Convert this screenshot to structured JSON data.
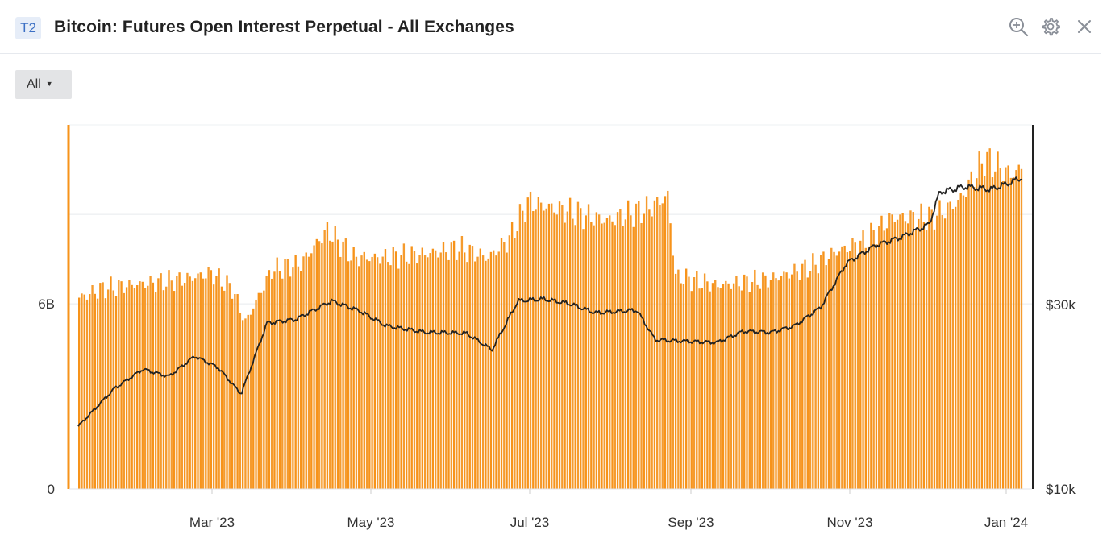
{
  "header": {
    "badge": "T2",
    "title": "Bitcoin: Futures Open Interest Perpetual - All Exchanges",
    "icons": [
      "zoom-in-icon",
      "gear-icon",
      "close-icon"
    ]
  },
  "filter": {
    "label": "All"
  },
  "chart_data": {
    "type": "bar",
    "title": "Bitcoin: Futures Open Interest Perpetual - All Exchanges",
    "x_ticks": [
      "Mar '23",
      "May '23",
      "Jul '23",
      "Sep '23",
      "Nov '23",
      "Jan '24"
    ],
    "x_range": [
      "2023-01-06",
      "2024-01-06"
    ],
    "left_axis": {
      "ticks": [
        "0",
        "6B"
      ],
      "tick_values": [
        0,
        6000000000
      ],
      "ylim": [
        0,
        11800000000
      ]
    },
    "right_axis": {
      "ticks": [
        "$10k",
        "$30k"
      ],
      "tick_values": [
        10000,
        30000
      ],
      "ylim": [
        10000,
        49500
      ]
    },
    "colors": {
      "bars": "#f7931a",
      "price_line": "#222222"
    },
    "grid": true,
    "series": [
      {
        "type": "bar",
        "axis": "left",
        "x": [
          "2023-01-06",
          "2023-01-15",
          "2023-01-25",
          "2023-02-05",
          "2023-02-15",
          "2023-02-25",
          "2023-03-05",
          "2023-03-10",
          "2023-03-20",
          "2023-03-31",
          "2023-04-10",
          "2023-04-20",
          "2023-05-01",
          "2023-05-15",
          "2023-05-30",
          "2023-06-10",
          "2023-06-18",
          "2023-06-25",
          "2023-07-10",
          "2023-07-25",
          "2023-08-10",
          "2023-08-17",
          "2023-08-20",
          "2023-09-05",
          "2023-09-25",
          "2023-10-10",
          "2023-10-20",
          "2023-10-30",
          "2023-11-10",
          "2023-11-25",
          "2023-12-05",
          "2023-12-15",
          "2023-12-25",
          "2024-01-03",
          "2024-01-06"
        ],
        "values": [
          6200000000,
          6500000000,
          6600000000,
          6700000000,
          6800000000,
          7000000000,
          6500000000,
          5400000000,
          7100000000,
          7300000000,
          8400000000,
          7500000000,
          7500000000,
          7600000000,
          7800000000,
          7500000000,
          8100000000,
          9300000000,
          9000000000,
          8700000000,
          9100000000,
          9500000000,
          6900000000,
          6600000000,
          6800000000,
          7200000000,
          7700000000,
          8000000000,
          8800000000,
          8800000000,
          9300000000,
          10700000000,
          10200000000,
          10600000000,
          9700000000
        ]
      },
      {
        "type": "line",
        "axis": "right",
        "x": [
          "2023-01-06",
          "2023-01-20",
          "2023-01-31",
          "2023-02-10",
          "2023-02-20",
          "2023-03-01",
          "2023-03-10",
          "2023-03-20",
          "2023-03-31",
          "2023-04-14",
          "2023-04-25",
          "2023-05-05",
          "2023-05-20",
          "2023-06-05",
          "2023-06-15",
          "2023-06-25",
          "2023-07-05",
          "2023-07-15",
          "2023-07-25",
          "2023-08-10",
          "2023-08-17",
          "2023-08-31",
          "2023-09-10",
          "2023-09-20",
          "2023-10-01",
          "2023-10-10",
          "2023-10-20",
          "2023-10-30",
          "2023-11-10",
          "2023-11-20",
          "2023-12-01",
          "2023-12-05",
          "2023-12-15",
          "2023-12-25",
          "2024-01-01",
          "2024-01-06"
        ],
        "values": [
          16800,
          20900,
          23000,
          22200,
          24400,
          23200,
          20300,
          28000,
          28400,
          30400,
          29300,
          27700,
          27000,
          26900,
          25100,
          30400,
          30600,
          30100,
          29100,
          29400,
          26200,
          26000,
          25900,
          27100,
          27000,
          27700,
          29700,
          34500,
          36400,
          37300,
          38700,
          42200,
          42800,
          42500,
          43200,
          43800
        ]
      }
    ]
  }
}
